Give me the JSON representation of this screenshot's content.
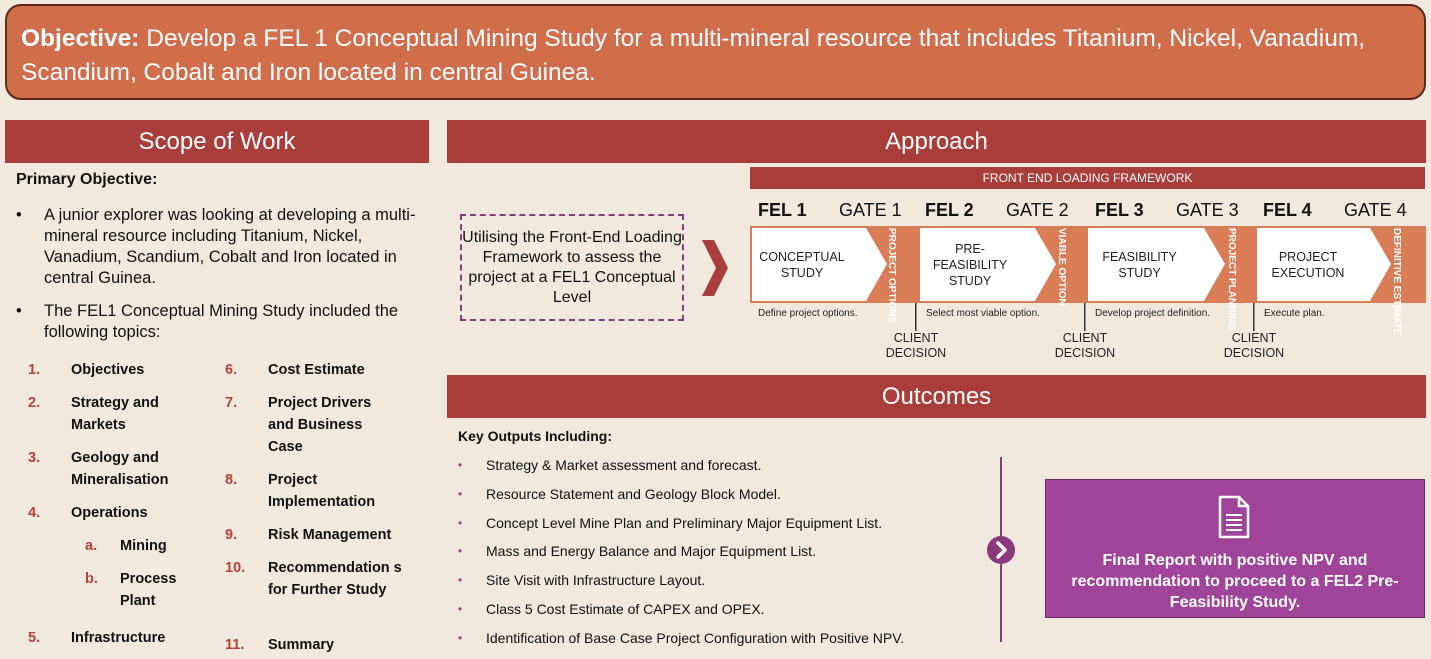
{
  "objective": {
    "label": "Objective:",
    "text": "Develop a FEL 1 Conceptual Mining Study for a multi-mineral resource that includes Titanium, Nickel, Vanadium, Scandium, Cobalt and Iron located in central Guinea."
  },
  "scope": {
    "heading": "Scope of Work",
    "primary_title": "Primary Objective:",
    "bullets": [
      "A junior explorer was looking at developing a multi-mineral resource including Titanium, Nickel, Vanadium, Scandium, Cobalt and Iron located in central Guinea.",
      "The FEL1 Conceptual Mining Study included the following topics:"
    ],
    "topics_left": [
      {
        "num": "1.",
        "label": "Objectives"
      },
      {
        "num": "2.",
        "label": "Strategy and Markets"
      },
      {
        "num": "3.",
        "label": "Geology and Mineralisation"
      },
      {
        "num": "4.",
        "label": "Operations"
      },
      {
        "num": "a.",
        "label": "Mining"
      },
      {
        "num": "b.",
        "label": "Process Plant"
      },
      {
        "num": "5.",
        "label": "Infrastructure"
      }
    ],
    "topics_right": [
      {
        "num": "6.",
        "label": "Cost Estimate"
      },
      {
        "num": "7.",
        "label": "Project Drivers and Business Case"
      },
      {
        "num": "8.",
        "label": "Project Implementation"
      },
      {
        "num": "9.",
        "label": "Risk Management"
      },
      {
        "num": "10.",
        "label": "Recommendation s for Further Study"
      },
      {
        "num": "11.",
        "label": "Summary"
      }
    ]
  },
  "approach": {
    "heading": "Approach",
    "utilise_text": "Utilising the Front-End Loading Framework to assess the project at a FEL1 Conceptual Level",
    "framework_title": "FRONT END LOADING FRAMEWORK",
    "fels": [
      "FEL 1",
      "FEL 2",
      "FEL 3",
      "FEL 4"
    ],
    "gates": [
      "GATE 1",
      "GATE 2",
      "GATE 3",
      "GATE 4"
    ],
    "stages": [
      {
        "name": "CONCEPTUAL STUDY",
        "gate_text": "PROJECT OPTIONS",
        "desc": "Define project options."
      },
      {
        "name": "PRE-FEASIBILITY STUDY",
        "gate_text": "VIABLE OPTION",
        "desc": "Select most viable option."
      },
      {
        "name": "FEASIBILITY STUDY",
        "gate_text": "PROJECT PLANNING",
        "desc": "Develop project definition."
      },
      {
        "name": "PROJECT EXECUTION",
        "gate_text": "DEFINITIVE ESTIMATE",
        "desc": "Execute plan."
      }
    ],
    "decision_label": "CLIENT DECISION",
    "colors": {
      "stage_fill": "#ffffff",
      "gate_fill": "#d87d55",
      "bar": "#a93d3a"
    }
  },
  "outcomes": {
    "heading": "Outcomes",
    "key_title": "Key Outputs Including:",
    "items": [
      "Strategy & Market assessment and forecast.",
      "Resource Statement and Geology Block Model.",
      "Concept Level Mine Plan and Preliminary Major Equipment List.",
      "Mass and Energy Balance and Major Equipment List.",
      "Site Visit with Infrastructure Layout.",
      "Class 5 Cost Estimate of CAPEX and OPEX.",
      "Identification of Base Case Project Configuration with Positive NPV."
    ],
    "final": "Final Report with positive NPV and recommendation to proceed to a FEL2 Pre-Feasibility Study."
  }
}
